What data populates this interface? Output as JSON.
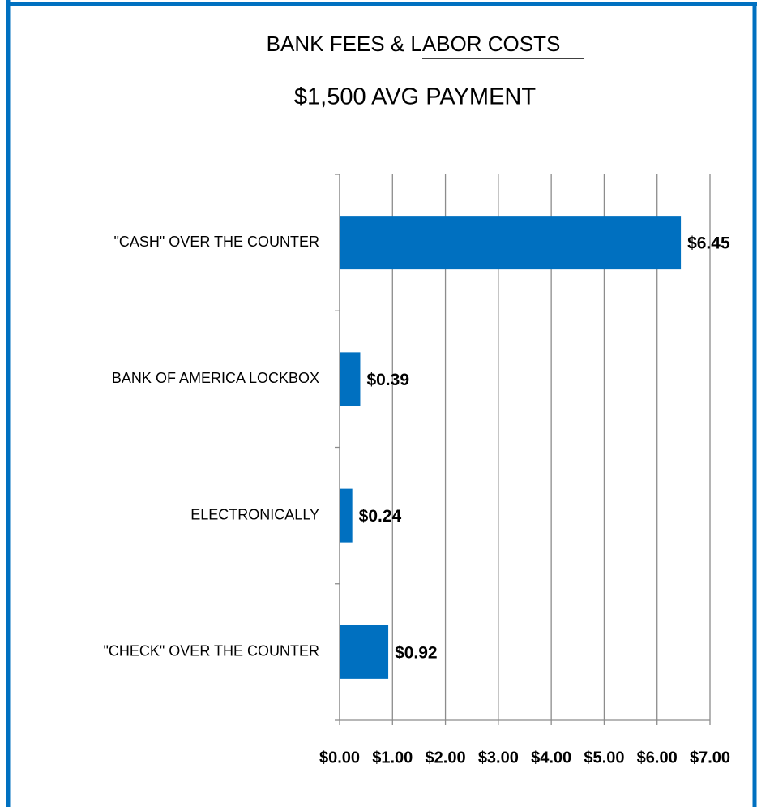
{
  "chart_data": {
    "type": "hbar",
    "title": "BANK FEES & LABOR COSTS",
    "subtitle": "$1,500 AVG PAYMENT",
    "categories": [
      "\"CASH\" OVER THE COUNTER",
      "BANK OF AMERICA LOCKBOX",
      "ELECTRONICALLY",
      "\"CHECK\" OVER THE COUNTER"
    ],
    "values": [
      6.45,
      0.39,
      0.24,
      0.92
    ],
    "value_labels": [
      "$6.45",
      "$0.39",
      "$0.24",
      "$0.92"
    ],
    "color": "#0070c0",
    "xlim": [
      0,
      7
    ],
    "xticks": [
      {
        "value": 0,
        "label": "$0.00"
      },
      {
        "value": 1,
        "label": "$1.00"
      },
      {
        "value": 2,
        "label": "$2.00"
      },
      {
        "value": 3,
        "label": "$3.00"
      },
      {
        "value": 4,
        "label": "$4.00"
      },
      {
        "value": 5,
        "label": "$5.00"
      },
      {
        "value": 6,
        "label": "$6.00"
      },
      {
        "value": 7,
        "label": "$7.00"
      }
    ],
    "grid": true
  }
}
